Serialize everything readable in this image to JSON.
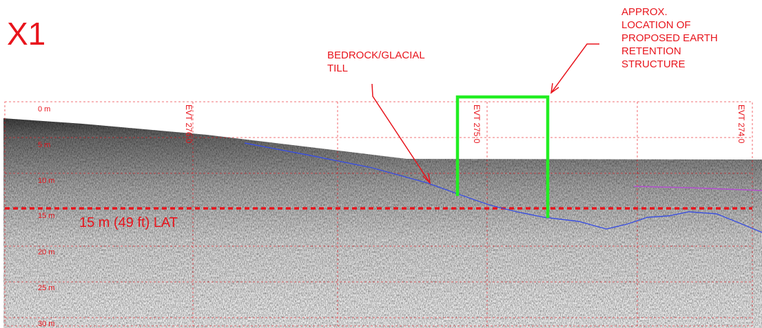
{
  "title": "X1",
  "annotations": {
    "bedrock": [
      "BEDROCK/GLACIAL",
      "TILL"
    ],
    "structure": [
      "APPROX.",
      "LOCATION OF",
      "PROPOSED EARTH",
      "RETENTION",
      "STRUCTURE"
    ]
  },
  "depth_labels": [
    "0 m",
    "5 m",
    "10 m",
    "15 m",
    "20 m",
    "25 m",
    "30 m"
  ],
  "event_labels": [
    "EVT 276.0",
    "EVT 275.0",
    "EVT 274.0"
  ],
  "lat_label": "15 m (49 ft) LAT"
}
